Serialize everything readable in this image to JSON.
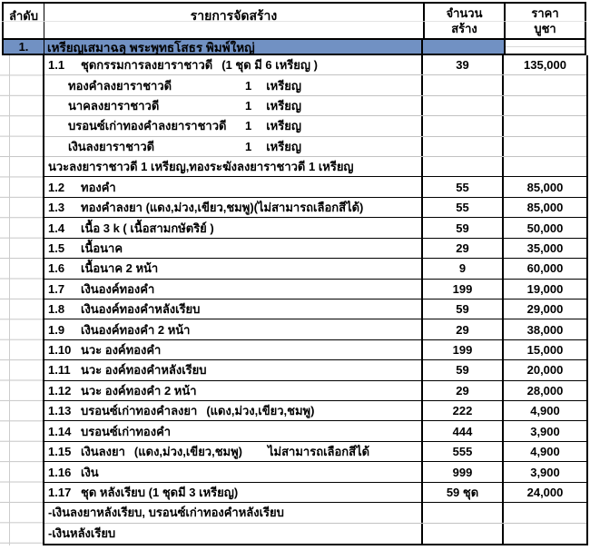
{
  "colors": {
    "highlight": "#7191C3",
    "border": "#000000",
    "gridline": "#C6C6C6"
  },
  "table": {
    "headers": {
      "order": "ลำดับ",
      "items": "รายการจัดสร้าง",
      "qty_line1": "จำนวน",
      "qty_line2": "สร้าง",
      "price_line1": "ราคา",
      "price_line2": "บูชา"
    },
    "section": {
      "no": "1.",
      "title": "เหรียญเสมาฉลุ พระพุทธโสธร พิมพ์ใหญ่"
    },
    "rows": [
      {
        "no": "1.1",
        "name": "ชุดกรรมการลงยาราชาวดี",
        "note": "(1 ชุด มี 6 เหรียญ )",
        "qty": "39",
        "price": "135,000",
        "style": "main",
        "sep": "gray"
      },
      {
        "name": "ทองคำลงยาราชาวดี",
        "count": "1",
        "unit": "เหรียญ",
        "style": "sub",
        "sep": "gray"
      },
      {
        "name": "นาคลงยาราชาวดี",
        "count": "1",
        "unit": "เหรียญ",
        "style": "sub",
        "sep": "gray"
      },
      {
        "name": "บรอนซ์เก่าทองคำลงยาราชาวดี",
        "count": "1",
        "unit": "เหรียญ",
        "style": "sub",
        "sep": "gray"
      },
      {
        "name": "เงินลงยาราชาวดี",
        "count": "1",
        "unit": "เหรียญ",
        "style": "sub",
        "sep": "gray"
      },
      {
        "name": "นวะลงยาราชาวดี 1 เหรียญ,ทองระฆังลงยาราชาวดี 1 เหรียญ",
        "style": "subwide",
        "sep": "black"
      },
      {
        "no": "1.2",
        "name": "ทองคำ",
        "qty": "55",
        "price": "85,000",
        "style": "main",
        "sep": "black"
      },
      {
        "no": "1.3",
        "name": "ทองคำลงยา (แดง,ม่วง,เขียว,ชมพู)(ไม่สามารถเลือกสีได้)",
        "qty": "55",
        "price": "85,000",
        "style": "main",
        "sep": "black"
      },
      {
        "no": "1.4",
        "name": "เนื้อ 3 k ( เนื้อสามกษัตริย์ )",
        "qty": "59",
        "price": "50,000",
        "style": "main",
        "sep": "black"
      },
      {
        "no": "1.5",
        "name": "เนื้อนาค",
        "qty": "29",
        "price": "35,000",
        "style": "main",
        "sep": "black"
      },
      {
        "no": "1.6",
        "name": "เนื้อนาค 2 หน้า",
        "qty": "9",
        "price": "60,000",
        "style": "main",
        "sep": "black"
      },
      {
        "no": "1.7",
        "name": "เงินองค์ทองคำ",
        "qty": "199",
        "price": "19,000",
        "style": "main",
        "sep": "black"
      },
      {
        "no": "1.8",
        "name": "เงินองค์ทองคำหลังเรียบ",
        "qty": "59",
        "price": "29,000",
        "style": "main",
        "sep": "black"
      },
      {
        "no": "1.9",
        "name": "เงินองค์ทองคำ 2 หน้า",
        "qty": "29",
        "price": "38,000",
        "style": "main",
        "sep": "black"
      },
      {
        "no": "1.10",
        "name": "นวะ องค์ทองคำ",
        "qty": "199",
        "price": "15,000",
        "style": "main",
        "sep": "black"
      },
      {
        "no": "1.11",
        "name": "นวะ องค์ทองคำหลังเรียบ",
        "qty": "59",
        "price": "20,000",
        "style": "main",
        "sep": "black"
      },
      {
        "no": "1.12",
        "name": "นวะ องค์ทองคำ 2 หน้า",
        "qty": "29",
        "price": "28,000",
        "style": "main",
        "sep": "black"
      },
      {
        "no": "1.13",
        "name": "บรอนซ์เก่าทองคำลงยา",
        "note": "(แดง,ม่วง,เขียว,ชมพู)",
        "qty": "222",
        "price": "4,900",
        "style": "main",
        "sep": "black"
      },
      {
        "no": "1.14",
        "name": "บรอนซ์เก่าทองคำ",
        "qty": "444",
        "price": "3,900",
        "style": "main",
        "sep": "black"
      },
      {
        "no": "1.15",
        "name": "เงินลงยา",
        "note": "(แดง,ม่วง,เขียว,ชมพู)",
        "note2": "ไม่สามารถเลือกสีได้",
        "qty": "555",
        "price": "4,900",
        "style": "main",
        "sep": "black"
      },
      {
        "no": "1.16",
        "name": "เงิน",
        "qty": "999",
        "price": "3,900",
        "style": "main",
        "sep": "black"
      },
      {
        "no": "1.17",
        "name": "ชุด หลังเรียบ (1 ชุดมี 3 เหรียญ)",
        "qty": "59 ชุด",
        "price": "24,000",
        "style": "main",
        "sep": "black"
      },
      {
        "name": "-เงินลงยาหลังเรียบ, บรอนซ์เก่าทองคำหลังเรียบ",
        "style": "subwide",
        "sep": "gray"
      },
      {
        "name": "-เงินหลังเรียบ",
        "style": "subwide",
        "sep": "none"
      }
    ]
  }
}
